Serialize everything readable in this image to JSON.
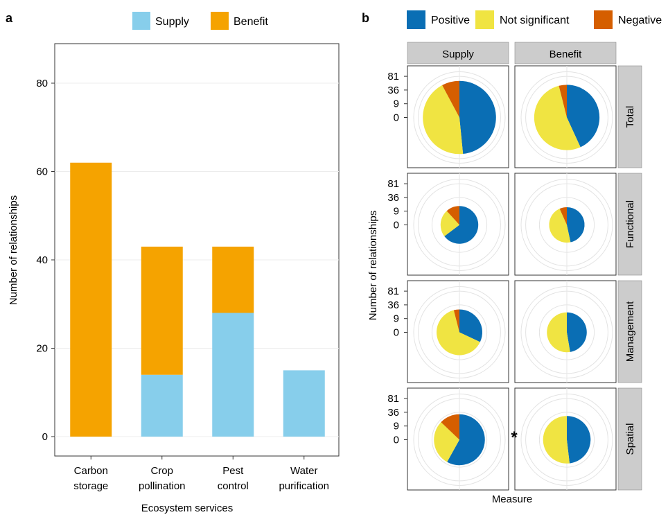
{
  "panel_a": {
    "label": "a",
    "legend": [
      {
        "name": "Supply",
        "color": "#87CEEB"
      },
      {
        "name": "Benefit",
        "color": "#F5A300"
      }
    ],
    "xlabel": "Ecosystem services",
    "ylabel": "Number of relationships"
  },
  "panel_b": {
    "label": "b",
    "legend": [
      {
        "name": "Positive",
        "color": "#0A6EB4"
      },
      {
        "name": "Not significant",
        "color": "#F0E442"
      },
      {
        "name": "Negative",
        "color": "#D55E00"
      }
    ],
    "columns": [
      "Supply",
      "Benefit"
    ],
    "rows": [
      "Total",
      "Functional",
      "Management",
      "Spatial"
    ],
    "ylabel": "Number of relationships",
    "xlabel": "Measure",
    "tick_labels": [
      "81",
      "36",
      "9",
      "0"
    ],
    "annotation": "*"
  },
  "chart_data": [
    {
      "type": "bar",
      "stacked": true,
      "categories": [
        "Carbon\nstorage",
        "Crop\npollination",
        "Pest\ncontrol",
        "Water\npurification"
      ],
      "series": [
        {
          "name": "Supply",
          "values": [
            0,
            14,
            28,
            15
          ]
        },
        {
          "name": "Benefit",
          "values": [
            62,
            29,
            15,
            0
          ]
        }
      ],
      "yticks": [
        0,
        20,
        40,
        60,
        80
      ],
      "ylim": [
        -1.5,
        91
      ],
      "xlabel": "Ecosystem services",
      "ylabel": "Number of relationships",
      "grid": true,
      "legend_position": "top"
    },
    {
      "type": "pie",
      "radial_scale": "sqrt",
      "rticks": [
        0,
        9,
        36,
        81
      ],
      "rmax": 100,
      "series_names": [
        "Positive",
        "Not significant",
        "Negative"
      ],
      "facets": [
        {
          "row": "Total",
          "column": "Supply",
          "values": [
            31,
            28,
            5
          ]
        },
        {
          "row": "Total",
          "column": "Benefit",
          "values": [
            22,
            27,
            2
          ]
        },
        {
          "row": "Functional",
          "column": "Supply",
          "values": [
            11,
            4,
            2
          ]
        },
        {
          "row": "Functional",
          "column": "Benefit",
          "values": [
            7,
            7,
            1
          ]
        },
        {
          "row": "Management",
          "column": "Supply",
          "values": [
            8,
            16,
            1
          ]
        },
        {
          "row": "Management",
          "column": "Benefit",
          "values": [
            9,
            10,
            0
          ]
        },
        {
          "row": "Spatial",
          "column": "Supply",
          "values": [
            18,
            9,
            4
          ]
        },
        {
          "row": "Spatial",
          "column": "Benefit",
          "values": [
            13,
            14,
            0
          ]
        }
      ]
    }
  ]
}
